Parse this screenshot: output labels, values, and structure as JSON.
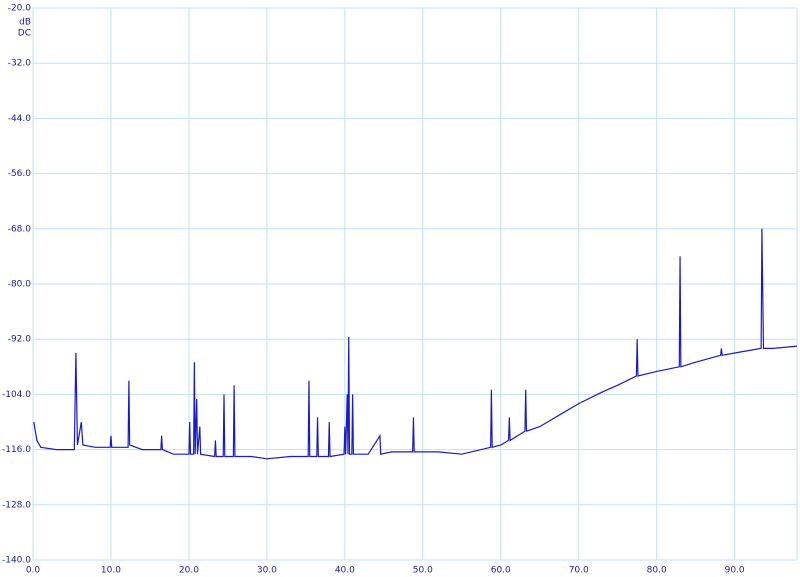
{
  "chart_data": {
    "type": "line",
    "y_units": [
      "dB",
      "DC"
    ],
    "xlim": [
      0,
      98
    ],
    "ylim": [
      -140,
      -20
    ],
    "xticks": [
      {
        "value": 0,
        "label": "0.0"
      },
      {
        "value": 10,
        "label": "10.0"
      },
      {
        "value": 20,
        "label": "20.0"
      },
      {
        "value": 30,
        "label": "30.0"
      },
      {
        "value": 40,
        "label": "40.0"
      },
      {
        "value": 50,
        "label": "50.0"
      },
      {
        "value": 60,
        "label": "60.0"
      },
      {
        "value": 70,
        "label": "70.0"
      },
      {
        "value": 80,
        "label": "80.0"
      },
      {
        "value": 90,
        "label": "90.0"
      }
    ],
    "yticks": [
      {
        "value": -20,
        "label": "-20.0"
      },
      {
        "value": -32,
        "label": "-32.0"
      },
      {
        "value": -44,
        "label": "-44.0"
      },
      {
        "value": -56,
        "label": "-56.0"
      },
      {
        "value": -68,
        "label": "-68.0"
      },
      {
        "value": -80,
        "label": "-80.0"
      },
      {
        "value": -92,
        "label": "-92.0"
      },
      {
        "value": -104,
        "label": "-104.0"
      },
      {
        "value": -116,
        "label": "-116.0"
      },
      {
        "value": -128,
        "label": "-128.0"
      },
      {
        "value": -140,
        "label": "-140.0"
      }
    ],
    "grid": true,
    "x": [
      0.1,
      0.5,
      1,
      3,
      5.3,
      5.5,
      5.7,
      6.2,
      6.4,
      8,
      9.9,
      10,
      10.1,
      12.2,
      12.3,
      12.4,
      14,
      16.4,
      16.5,
      16.6,
      18,
      20.0,
      20.1,
      20.2,
      20.6,
      20.7,
      20.8,
      21,
      21.1,
      21.4,
      21.5,
      23.3,
      23.4,
      23.5,
      24.4,
      24.5,
      24.6,
      25.7,
      25.8,
      25.9,
      28,
      30,
      33,
      35.3,
      35.4,
      35.5,
      36.4,
      36.5,
      36.6,
      37.9,
      38,
      38.1,
      39.9,
      40,
      40.1,
      40.3,
      40.4,
      40.5,
      40.6,
      40.9,
      41,
      41.1,
      43,
      44.5,
      44.6,
      46,
      48.7,
      48.8,
      48.9,
      52,
      55,
      58.7,
      58.8,
      58.9,
      60,
      61,
      61.1,
      61.2,
      63.1,
      63.2,
      63.3,
      65,
      68,
      70,
      73,
      75,
      77.4,
      77.5,
      77.6,
      80,
      82.9,
      83,
      83.1,
      85,
      88.2,
      88.3,
      88.4,
      90,
      93.4,
      93.5,
      93.7,
      95,
      98
    ],
    "series": [
      {
        "color": "#1a1acc",
        "values": [
          -110,
          -114,
          -115.5,
          -116,
          -116,
          -95,
          -115,
          -110,
          -115,
          -115.5,
          -115.5,
          -113,
          -115.5,
          -115.5,
          -101,
          -115,
          -116,
          -116,
          -113,
          -116,
          -117,
          -117,
          -110,
          -117,
          -117,
          -97,
          -117,
          -105,
          -117,
          -111,
          -117,
          -117.5,
          -114,
          -117.5,
          -117.5,
          -104,
          -117.5,
          -117.5,
          -102,
          -117.5,
          -117.5,
          -118,
          -117.5,
          -117.5,
          -101,
          -117.5,
          -117.5,
          -109,
          -117.5,
          -117.5,
          -110,
          -117.5,
          -117,
          -111,
          -117,
          -104,
          -117,
          -91.5,
          -117,
          -117,
          -104,
          -117,
          -117,
          -113,
          -117,
          -116.5,
          -116.5,
          -109,
          -116.5,
          -116.5,
          -117,
          -115.5,
          -103,
          -115.5,
          -115,
          -114,
          -109,
          -114,
          -112,
          -103,
          -112,
          -111,
          -108,
          -106,
          -103.5,
          -102,
          -100,
          -92,
          -100,
          -99,
          -98,
          -74,
          -98,
          -97,
          -95.5,
          -94,
          -95.5,
          -95,
          -94,
          -68,
          -94,
          -94,
          -93.5
        ]
      }
    ]
  }
}
